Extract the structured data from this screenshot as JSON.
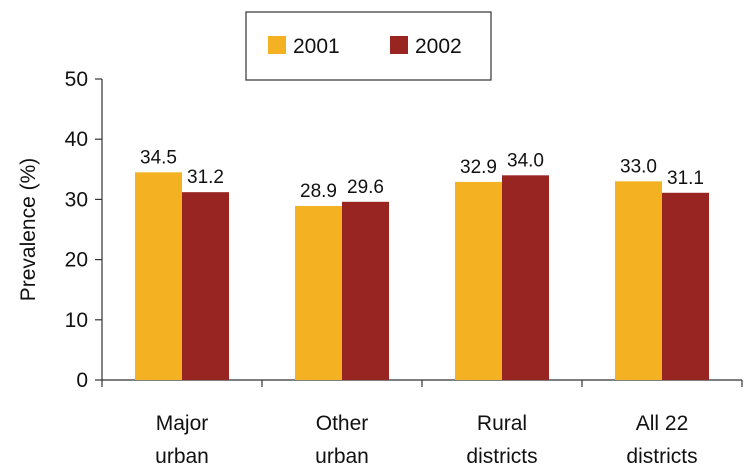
{
  "chart_data": {
    "type": "bar",
    "categories": [
      [
        "Major",
        "urban"
      ],
      [
        "Other",
        "urban"
      ],
      [
        "Rural",
        "districts"
      ],
      [
        "All 22",
        "districts"
      ]
    ],
    "series": [
      {
        "name": "2001",
        "color": "#F4B223",
        "values": [
          34.5,
          28.9,
          32.9,
          33.0
        ],
        "labels": [
          "34.5",
          "28.9",
          "32.9",
          "33.0"
        ]
      },
      {
        "name": "2002",
        "color": "#982521",
        "values": [
          31.2,
          29.6,
          34.0,
          31.1
        ],
        "labels": [
          "31.2",
          "29.6",
          "34.0",
          "31.1"
        ]
      }
    ],
    "title": "",
    "xlabel": "",
    "ylabel": "Prevalence (%)",
    "ylim": [
      0,
      50
    ],
    "yticks": [
      0,
      10,
      20,
      30,
      40,
      50
    ],
    "grid": false,
    "legend_position": "top-center"
  }
}
